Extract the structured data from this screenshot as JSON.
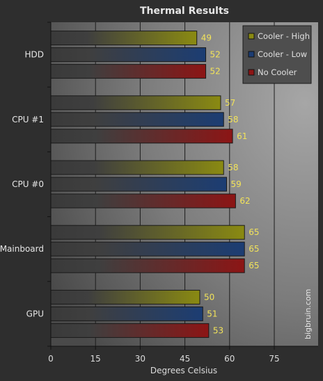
{
  "chart_data": {
    "type": "bar",
    "orientation": "horizontal",
    "title": "Thermal Results",
    "xlabel": "Degrees Celsius",
    "ylabel": "",
    "xlim": [
      0,
      90
    ],
    "xticks": [
      0,
      15,
      30,
      45,
      60,
      75
    ],
    "categories": [
      "HDD",
      "CPU #1",
      "CPU #0",
      "Mainboard",
      "GPU"
    ],
    "series": [
      {
        "name": "Cooler - High",
        "color": "#8a8a12",
        "values": [
          49,
          57,
          58,
          65,
          50
        ]
      },
      {
        "name": "Cooler - Low",
        "color": "#1c3d73",
        "values": [
          52,
          58,
          59,
          65,
          51
        ]
      },
      {
        "name": "No Cooler",
        "color": "#8c1515",
        "values": [
          52,
          61,
          62,
          65,
          53
        ]
      }
    ],
    "grid": true,
    "legend_position": "top-right",
    "value_label_color": "#f2e35a",
    "watermark": "bigbruin.com"
  }
}
